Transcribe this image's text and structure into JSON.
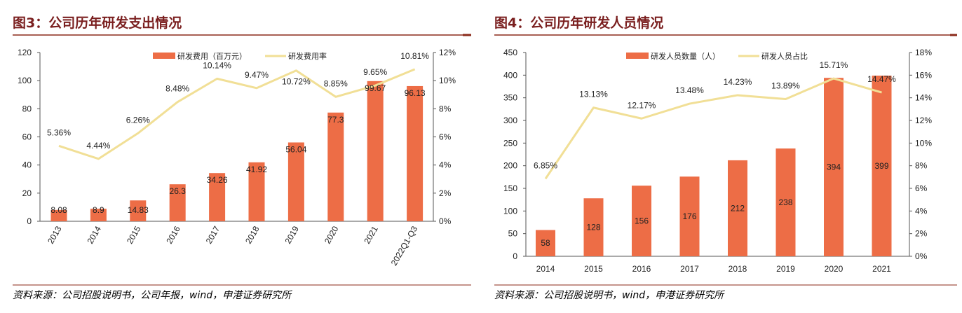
{
  "panels": [
    {
      "title": "图3：公司历年研发支出情况",
      "source": "资料来源：公司招股说明书，公司年报，wind，申港证券研究所"
    },
    {
      "title": "图4：公司历年研发人员情况",
      "source": "资料来源：公司招股说明书，wind，申港证券研究所"
    }
  ],
  "colors": {
    "bar": "#ED6D46",
    "line": "#F1DF96",
    "title": "#7a1f1f",
    "rule": "#8b2a1a"
  },
  "chart_data": [
    {
      "type": "bar+line",
      "categories": [
        "2013",
        "2014",
        "2015",
        "2016",
        "2017",
        "2018",
        "2019",
        "2020",
        "2021",
        "2022Q1-Q3"
      ],
      "series": [
        {
          "name": "研发费用（百万元）",
          "type": "bar",
          "axis": "left",
          "values": [
            8.08,
            8.9,
            14.83,
            26.3,
            34.26,
            41.92,
            56.04,
            77.3,
            99.67,
            96.13
          ],
          "labels": [
            "8.08",
            "8.9",
            "14.83",
            "26.3",
            "34.26",
            "41.92",
            "56.04",
            "77.3",
            "99.67",
            "96.13"
          ]
        },
        {
          "name": "研发费用率",
          "type": "line",
          "axis": "right",
          "values": [
            5.36,
            4.44,
            6.26,
            8.48,
            10.14,
            9.47,
            10.72,
            8.85,
            9.65,
            10.81
          ],
          "labels": [
            "5.36%",
            "4.44%",
            "6.26%",
            "8.48%",
            "10.14%",
            "9.47%",
            "10.72%",
            "8.85%",
            "9.65%",
            "10.81%"
          ]
        }
      ],
      "ylim_left": [
        0,
        120
      ],
      "yticks_left": [
        "0",
        "20",
        "40",
        "60",
        "80",
        "100",
        "120"
      ],
      "ylim_right": [
        0,
        12
      ],
      "yticks_right": [
        "0%",
        "2%",
        "4%",
        "6%",
        "8%",
        "10%",
        "12%"
      ],
      "x_labels_rotated": true,
      "grid": false,
      "legend": "top-center"
    },
    {
      "type": "bar+line",
      "categories": [
        "2014",
        "2015",
        "2016",
        "2017",
        "2018",
        "2019",
        "2020",
        "2021"
      ],
      "series": [
        {
          "name": "研发人员数量（人）",
          "type": "bar",
          "axis": "left",
          "values": [
            58,
            128,
            156,
            176,
            212,
            238,
            394,
            399
          ],
          "labels": [
            "58",
            "128",
            "156",
            "176",
            "212",
            "238",
            "394",
            "399"
          ]
        },
        {
          "name": "研发人员占比",
          "type": "line",
          "axis": "right",
          "values": [
            6.85,
            13.13,
            12.17,
            13.48,
            14.23,
            13.89,
            15.71,
            14.47
          ],
          "labels": [
            "6.85%",
            "13.13%",
            "12.17%",
            "13.48%",
            "14.23%",
            "13.89%",
            "15.71%",
            "14.47%"
          ]
        }
      ],
      "ylim_left": [
        0,
        450
      ],
      "yticks_left": [
        "0",
        "50",
        "100",
        "150",
        "200",
        "250",
        "300",
        "350",
        "400",
        "450"
      ],
      "ylim_right": [
        0,
        18
      ],
      "yticks_right": [
        "0%",
        "2%",
        "4%",
        "6%",
        "8%",
        "10%",
        "12%",
        "14%",
        "16%",
        "18%"
      ],
      "x_labels_rotated": false,
      "grid": false,
      "legend": "top-center"
    }
  ]
}
